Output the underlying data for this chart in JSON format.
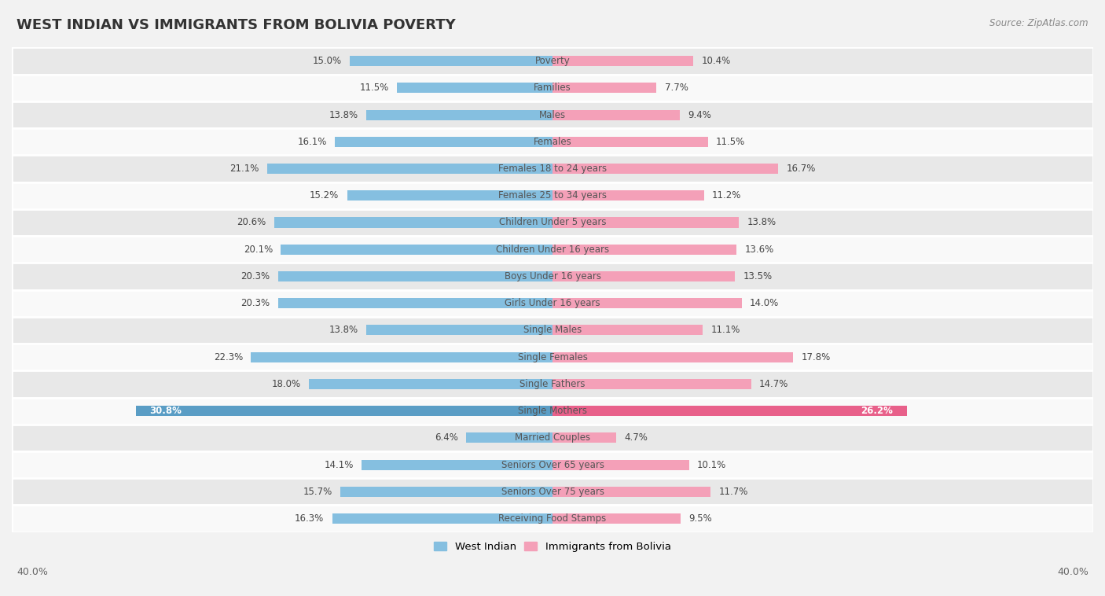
{
  "title": "WEST INDIAN VS IMMIGRANTS FROM BOLIVIA POVERTY",
  "source": "Source: ZipAtlas.com",
  "categories": [
    "Poverty",
    "Families",
    "Males",
    "Females",
    "Females 18 to 24 years",
    "Females 25 to 34 years",
    "Children Under 5 years",
    "Children Under 16 years",
    "Boys Under 16 years",
    "Girls Under 16 years",
    "Single Males",
    "Single Females",
    "Single Fathers",
    "Single Mothers",
    "Married Couples",
    "Seniors Over 65 years",
    "Seniors Over 75 years",
    "Receiving Food Stamps"
  ],
  "west_indian": [
    15.0,
    11.5,
    13.8,
    16.1,
    21.1,
    15.2,
    20.6,
    20.1,
    20.3,
    20.3,
    13.8,
    22.3,
    18.0,
    30.8,
    6.4,
    14.1,
    15.7,
    16.3
  ],
  "bolivia": [
    10.4,
    7.7,
    9.4,
    11.5,
    16.7,
    11.2,
    13.8,
    13.6,
    13.5,
    14.0,
    11.1,
    17.8,
    14.7,
    26.2,
    4.7,
    10.1,
    11.7,
    9.5
  ],
  "west_indian_color": "#85BFE0",
  "west_indian_highlight_color": "#5A9DC5",
  "bolivia_color": "#F4A0B8",
  "bolivia_highlight_color": "#E8608A",
  "background_color": "#f2f2f2",
  "row_light_color": "#e8e8e8",
  "row_white_color": "#f9f9f9",
  "bar_height": 0.38,
  "xlim": 40.0,
  "title_fontsize": 13,
  "label_fontsize": 8.5,
  "value_fontsize": 8.5,
  "tick_fontsize": 9,
  "legend_labels": [
    "West Indian",
    "Immigrants from Bolivia"
  ],
  "highlight_row": 13
}
